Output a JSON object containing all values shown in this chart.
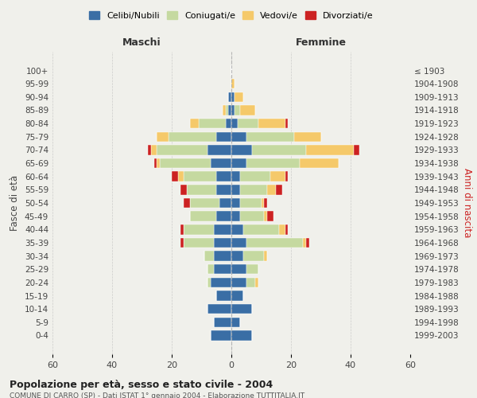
{
  "age_groups": [
    "0-4",
    "5-9",
    "10-14",
    "15-19",
    "20-24",
    "25-29",
    "30-34",
    "35-39",
    "40-44",
    "45-49",
    "50-54",
    "55-59",
    "60-64",
    "65-69",
    "70-74",
    "75-79",
    "80-84",
    "85-89",
    "90-94",
    "95-99",
    "100+"
  ],
  "birth_years": [
    "1999-2003",
    "1994-1998",
    "1989-1993",
    "1984-1988",
    "1979-1983",
    "1974-1978",
    "1969-1973",
    "1964-1968",
    "1959-1963",
    "1954-1958",
    "1949-1953",
    "1944-1948",
    "1939-1943",
    "1934-1938",
    "1929-1933",
    "1924-1928",
    "1919-1923",
    "1914-1918",
    "1909-1913",
    "1904-1908",
    "≤ 1903"
  ],
  "colors": {
    "celibe": "#3a6ea5",
    "coniugato": "#c5d9a0",
    "vedovo": "#f5c96a",
    "divorziato": "#cc2222"
  },
  "maschi": {
    "celibe": [
      7,
      6,
      8,
      5,
      7,
      6,
      6,
      6,
      6,
      5,
      4,
      5,
      5,
      7,
      8,
      5,
      2,
      1,
      1,
      0,
      0
    ],
    "coniugato": [
      0,
      0,
      0,
      0,
      1,
      2,
      3,
      10,
      10,
      9,
      10,
      10,
      11,
      17,
      17,
      16,
      9,
      1,
      0,
      0,
      0
    ],
    "vedovo": [
      0,
      0,
      0,
      0,
      0,
      0,
      0,
      0,
      0,
      0,
      0,
      0,
      2,
      1,
      2,
      4,
      3,
      1,
      0,
      0,
      0
    ],
    "divorziato": [
      0,
      0,
      0,
      0,
      0,
      0,
      0,
      1,
      1,
      0,
      2,
      2,
      2,
      1,
      1,
      0,
      0,
      0,
      0,
      0,
      0
    ]
  },
  "femmine": {
    "celibe": [
      7,
      3,
      7,
      4,
      5,
      5,
      4,
      5,
      4,
      3,
      3,
      3,
      3,
      5,
      7,
      5,
      2,
      1,
      1,
      0,
      0
    ],
    "coniugato": [
      0,
      0,
      0,
      0,
      3,
      4,
      7,
      19,
      12,
      8,
      7,
      9,
      10,
      18,
      18,
      16,
      7,
      2,
      0,
      0,
      0
    ],
    "vedovo": [
      0,
      0,
      0,
      0,
      1,
      0,
      1,
      1,
      2,
      1,
      1,
      3,
      5,
      13,
      16,
      9,
      9,
      5,
      3,
      1,
      0
    ],
    "divorziato": [
      0,
      0,
      0,
      0,
      0,
      0,
      0,
      1,
      1,
      2,
      1,
      2,
      1,
      0,
      2,
      0,
      1,
      0,
      0,
      0,
      0
    ]
  },
  "xlim": 60,
  "title_main": "Popolazione per età, sesso e stato civile - 2004",
  "title_sub": "COMUNE DI CARRO (SP) - Dati ISTAT 1° gennaio 2004 - Elaborazione TUTTITALIA.IT",
  "legend_labels": [
    "Celibi/Nubili",
    "Coniugati/e",
    "Vedovi/e",
    "Divorziati/e"
  ],
  "left_label": "Maschi",
  "right_label": "Femmine",
  "ylabel": "Fasce di età",
  "right_ylabel": "Anni di nascita",
  "background": "#f0f0eb"
}
